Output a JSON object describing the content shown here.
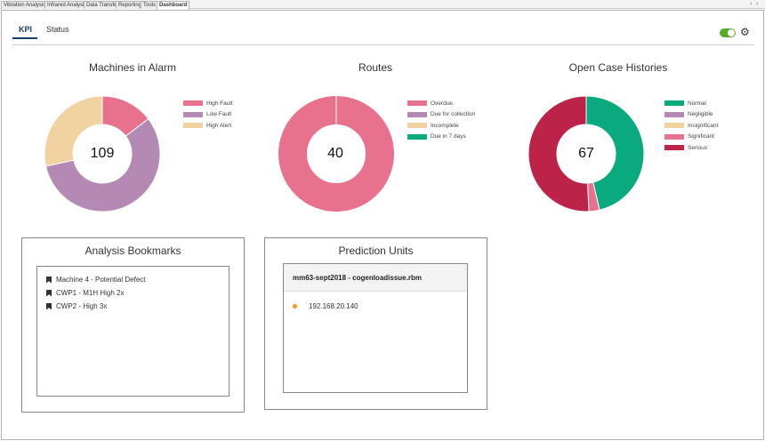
{
  "document_tabs": [
    {
      "label": "Vibration Analysis"
    },
    {
      "label": "Infrared Analysis"
    },
    {
      "label": "Data Transfer"
    },
    {
      "label": "Reporting"
    },
    {
      "label": "Tools"
    },
    {
      "label": "Dashboard"
    }
  ],
  "tabbar_controls": {
    "left_arrow": "‹",
    "right_arrow": "›"
  },
  "nav": {
    "tabs": [
      {
        "label": "KPI"
      },
      {
        "label": "Status"
      }
    ]
  },
  "toolbar": {
    "toggle_on": true,
    "gear_icon": "⚙"
  },
  "charts": [
    {
      "title": "Machines in Alarm",
      "total": "109",
      "legend": [
        {
          "label": "High Fault",
          "color": "#e8728e"
        },
        {
          "label": "Low Fault",
          "color": "#b48ab5"
        },
        {
          "label": "High Alert",
          "color": "#f0d3a0"
        }
      ]
    },
    {
      "title": "Routes",
      "total": "40",
      "legend": [
        {
          "label": "Overdue",
          "color": "#e8728e"
        },
        {
          "label": "Due for collection",
          "color": "#b48ab5"
        },
        {
          "label": "Incomplete",
          "color": "#f0d3a0"
        },
        {
          "label": "Due in 7 days",
          "color": "#0aaa7f"
        }
      ]
    },
    {
      "title": "Open Case Histories",
      "total": "67",
      "legend": [
        {
          "label": "Normal",
          "color": "#0aaa7f"
        },
        {
          "label": "Negligible",
          "color": "#b48ab5"
        },
        {
          "label": "Insignificant",
          "color": "#f0d3a0"
        },
        {
          "label": "Significant",
          "color": "#e8728e"
        },
        {
          "label": "Serious",
          "color": "#bd2349"
        }
      ]
    }
  ],
  "chart_data": [
    {
      "type": "pie",
      "title": "Machines in Alarm",
      "categories": [
        "High Fault",
        "Low Fault",
        "High Alert"
      ],
      "values": [
        16,
        62,
        31
      ],
      "colors": [
        "#e8728e",
        "#b48ab5",
        "#f0d3a0"
      ]
    },
    {
      "type": "pie",
      "title": "Routes",
      "categories": [
        "Overdue",
        "Due for collection",
        "Incomplete",
        "Due in 7 days"
      ],
      "values": [
        40,
        0,
        0,
        0
      ],
      "colors": [
        "#e8728e",
        "#b48ab5",
        "#f0d3a0",
        "#0aaa7f"
      ]
    },
    {
      "type": "pie",
      "title": "Open Case Histories",
      "categories": [
        "Normal",
        "Negligible",
        "Insignificant",
        "Significant",
        "Serious"
      ],
      "values": [
        31,
        0,
        0,
        2,
        34
      ],
      "colors": [
        "#0aaa7f",
        "#b48ab5",
        "#f0d3a0",
        "#e8728e",
        "#bd2349"
      ]
    }
  ],
  "bookmarks": {
    "title": "Analysis Bookmarks",
    "items": [
      {
        "label": "Machine 4 - Potential Defect"
      },
      {
        "label": "CWP1 - M1H High 2x"
      },
      {
        "label": "CWP2 - High 3x"
      }
    ]
  },
  "prediction_units": {
    "title": "Prediction Units",
    "header": "mm63-sept2018 - cogenloadissue.rbm",
    "items": [
      {
        "label": "192.168.20.140"
      }
    ]
  }
}
